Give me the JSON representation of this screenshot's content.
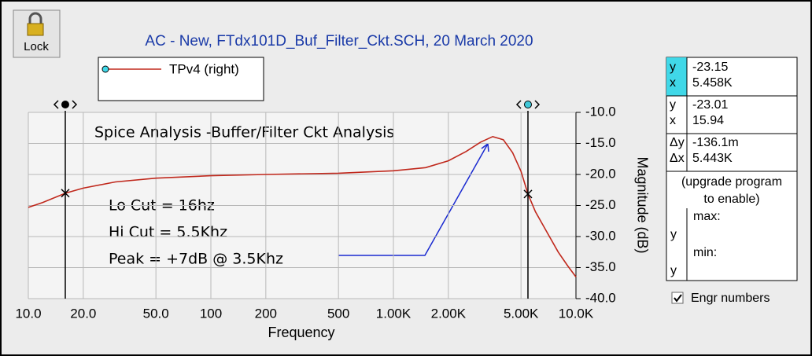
{
  "chart_data": {
    "type": "line",
    "title": "AC - New,    FTdx101D_Buf_Filter_Ckt.SCH,   20 March 2020",
    "x_label": "Frequency",
    "y_label": "Magnitude  (dB)",
    "x": [
      10,
      12,
      16,
      20,
      30,
      50,
      100,
      200,
      500,
      1000,
      1500,
      2000,
      2500,
      3000,
      3500,
      4000,
      4500,
      5000,
      5458,
      6000,
      7000,
      8000,
      9000,
      10000
    ],
    "series": [
      {
        "name": "TPv4 (right)",
        "color": "#c0281c",
        "values": [
          -25.3,
          -24.5,
          -23.0,
          -22.2,
          -21.2,
          -20.6,
          -20.2,
          -20.0,
          -19.8,
          -19.4,
          -18.9,
          -17.8,
          -16.3,
          -14.8,
          -13.9,
          -14.4,
          -16.5,
          -19.5,
          -23.15,
          -26.0,
          -29.5,
          -32.5,
          -34.7,
          -36.5
        ]
      }
    ],
    "xlim": [
      10,
      10000
    ],
    "log_x": true,
    "xticks": [
      {
        "value": 10,
        "label": "10.0"
      },
      {
        "value": 20,
        "label": "20.0"
      },
      {
        "value": 50,
        "label": "50.0"
      },
      100,
      200,
      500,
      {
        "value": 1000,
        "label": "1.00K"
      },
      {
        "value": 2000,
        "label": "2.00K"
      },
      {
        "value": 5000,
        "label": "5.00K"
      },
      {
        "value": 10000,
        "label": "10.0K"
      }
    ],
    "ylim": [
      -40,
      -10
    ],
    "yticks": [
      {
        "value": -10,
        "label": "-10.0"
      },
      {
        "value": -15,
        "label": "-15.0"
      },
      {
        "value": -20,
        "label": "-20.0"
      },
      {
        "value": -25,
        "label": "-25.0"
      },
      {
        "value": -30,
        "label": "-30.0"
      },
      {
        "value": -35,
        "label": "-35.0"
      },
      {
        "value": -40,
        "label": "-40.0"
      }
    ],
    "grid": true,
    "cursors": [
      {
        "x": 15.94,
        "y": -23.01,
        "color": "#000000"
      },
      {
        "x": 5458,
        "y": -23.15,
        "color": "#40c8d8"
      }
    ],
    "annotations": [
      "Spice Analysis -Buffer/Filter Ckt Analysis",
      "Lo Cut = 16hz",
      "Hi Cut = 5.5Khz",
      "Peak = +7dB @ 3.5Khz"
    ]
  },
  "lock_button": "Lock",
  "panel": {
    "rows": [
      {
        "labels": [
          "y",
          "x"
        ],
        "values": [
          "-23.15",
          "5.458K"
        ]
      },
      {
        "labels": [
          "y",
          "x"
        ],
        "values": [
          "-23.01",
          "15.94"
        ]
      },
      {
        "labels": [
          "Δy",
          "Δx"
        ],
        "values": [
          "-136.1m",
          "5.443K"
        ]
      }
    ],
    "note": [
      "(upgrade program",
      "to enable)"
    ],
    "max_label": "max:",
    "min_label": "min:",
    "y_labels": [
      "y",
      "y"
    ]
  },
  "checkbox": {
    "label": "Engr numbers",
    "checked": true
  }
}
